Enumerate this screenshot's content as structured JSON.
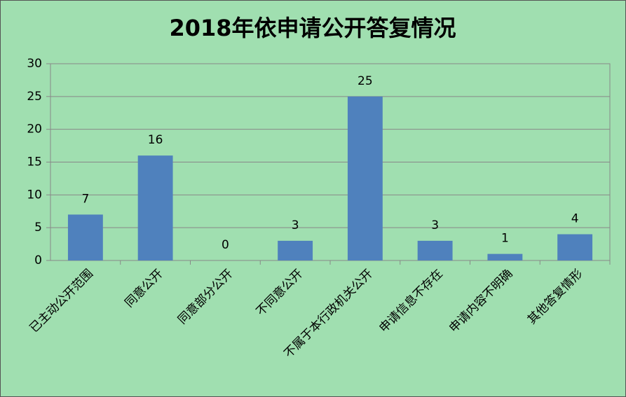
{
  "chart_data": {
    "type": "bar",
    "title": "2018年依申请公开答复情况",
    "categories": [
      "已主动公开范围",
      "同意公开",
      "同意部分公开",
      "不同意公开",
      "不属于本行政机关公开",
      "申请信息不存在",
      "申请内容不明确",
      "其他答复情形"
    ],
    "values": [
      7,
      16,
      0,
      3,
      25,
      3,
      1,
      4
    ],
    "color": "#4f81bd",
    "ylim": [
      0,
      30
    ],
    "yticks": [
      0,
      5,
      10,
      15,
      20,
      25,
      30
    ],
    "grid": true
  }
}
